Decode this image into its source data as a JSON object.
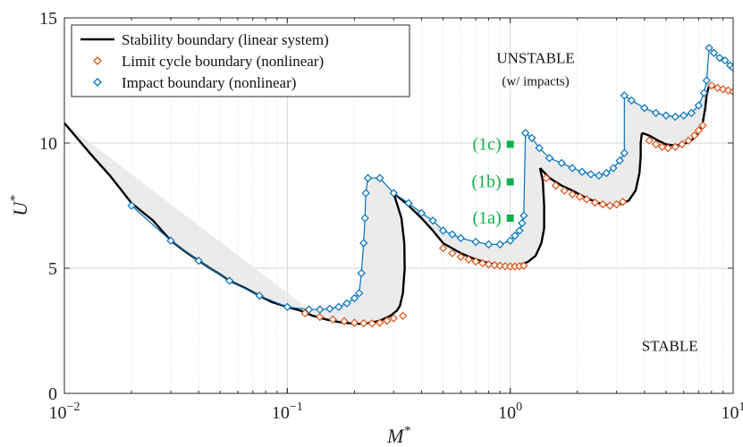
{
  "chart_data": {
    "type": "line",
    "xscale": "log",
    "xlim": [
      0.01,
      10
    ],
    "ylim": [
      0,
      15
    ],
    "grid": true,
    "legend_position": "top-left",
    "xlabel_main": "M",
    "xlabel_sup": "*",
    "ylabel_main": "U",
    "ylabel_sup": "*",
    "x_ticks": [
      {
        "value": 0.01,
        "base": "10",
        "exp": "−2"
      },
      {
        "value": 0.1,
        "base": "10",
        "exp": "−1"
      },
      {
        "value": 1,
        "base": "10",
        "exp": "0"
      },
      {
        "value": 10,
        "base": "10",
        "exp": "1"
      }
    ],
    "y_ticks": [
      {
        "value": 0,
        "label": "0"
      },
      {
        "value": 5,
        "label": "5"
      },
      {
        "value": 10,
        "label": "10"
      },
      {
        "value": 15,
        "label": "15"
      }
    ],
    "colors": {
      "stability": "#000000",
      "limit_cycle": "#d95319",
      "impact": "#0072bd",
      "shade": "#e8e8e8",
      "markers": "#10b04a"
    },
    "region_labels": [
      {
        "text": "UNSTABLE",
        "x": 1.3,
        "y": 13.2,
        "size": 17
      },
      {
        "text": "(w/ impacts)",
        "x": 1.3,
        "y": 12.3,
        "size": 15
      },
      {
        "text": "STABLE",
        "x": 5.2,
        "y": 1.7,
        "size": 17
      }
    ],
    "point_labels": [
      {
        "text": "(1a)",
        "x": 1.0,
        "y": 7.0
      },
      {
        "text": "(1b)",
        "x": 1.0,
        "y": 8.45
      },
      {
        "text": "(1c)",
        "x": 1.0,
        "y": 9.95
      }
    ],
    "series": [
      {
        "name": "Stability boundary (linear system)",
        "style": "line",
        "segments": [
          [
            [
              0.01,
              10.8
            ],
            [
              0.013,
              9.6
            ],
            [
              0.016,
              8.7
            ],
            [
              0.02,
              7.6
            ],
            [
              0.025,
              6.9
            ],
            [
              0.03,
              6.1
            ],
            [
              0.035,
              5.65
            ],
            [
              0.04,
              5.3
            ],
            [
              0.045,
              5.0
            ],
            [
              0.05,
              4.75
            ],
            [
              0.055,
              4.5
            ],
            [
              0.065,
              4.2
            ],
            [
              0.075,
              3.9
            ],
            [
              0.085,
              3.65
            ],
            [
              0.1,
              3.45
            ],
            [
              0.115,
              3.3
            ],
            [
              0.13,
              3.1
            ],
            [
              0.15,
              2.95
            ],
            [
              0.17,
              2.85
            ],
            [
              0.19,
              2.8
            ],
            [
              0.21,
              2.78
            ],
            [
              0.23,
              2.8
            ],
            [
              0.26,
              2.9
            ],
            [
              0.29,
              3.1
            ],
            [
              0.31,
              3.3
            ],
            [
              0.32,
              3.5
            ],
            [
              0.33,
              4.0
            ],
            [
              0.336,
              5.0
            ],
            [
              0.335,
              6.0
            ],
            [
              0.325,
              7.0
            ],
            [
              0.3,
              8.0
            ]
          ],
          [
            [
              0.3,
              8.0
            ],
            [
              0.35,
              7.5
            ],
            [
              0.4,
              7.0
            ],
            [
              0.45,
              6.5
            ],
            [
              0.5,
              6.0
            ],
            [
              0.6,
              5.6
            ],
            [
              0.7,
              5.35
            ],
            [
              0.8,
              5.2
            ],
            [
              0.9,
              5.12
            ],
            [
              1.0,
              5.1
            ],
            [
              1.1,
              5.12
            ],
            [
              1.2,
              5.25
            ],
            [
              1.3,
              5.5
            ],
            [
              1.38,
              6.0
            ],
            [
              1.42,
              6.6
            ],
            [
              1.42,
              7.5
            ],
            [
              1.4,
              8.5
            ],
            [
              1.36,
              9.0
            ]
          ],
          [
            [
              1.36,
              9.0
            ],
            [
              1.5,
              8.6
            ],
            [
              1.7,
              8.3
            ],
            [
              1.9,
              8.1
            ],
            [
              2.2,
              7.8
            ],
            [
              2.5,
              7.6
            ],
            [
              2.8,
              7.5
            ],
            [
              3.1,
              7.55
            ],
            [
              3.4,
              7.7
            ],
            [
              3.65,
              8.1
            ],
            [
              3.8,
              8.8
            ],
            [
              3.85,
              9.5
            ],
            [
              3.85,
              10.0
            ],
            [
              3.9,
              10.4
            ]
          ],
          [
            [
              3.9,
              10.4
            ],
            [
              4.2,
              10.3
            ],
            [
              4.6,
              10.1
            ],
            [
              5.0,
              9.95
            ],
            [
              5.5,
              9.9
            ],
            [
              6.0,
              9.95
            ],
            [
              6.5,
              10.1
            ],
            [
              7.0,
              10.4
            ],
            [
              7.3,
              10.8
            ],
            [
              7.5,
              11.4
            ],
            [
              7.6,
              11.9
            ],
            [
              7.8,
              12.3
            ]
          ],
          [
            [
              7.8,
              12.3
            ],
            [
              8.5,
              12.2
            ],
            [
              9.5,
              12.1
            ],
            [
              10.0,
              12.1
            ]
          ]
        ]
      },
      {
        "name": "Limit cycle boundary (nonlinear)",
        "style": "markers",
        "points": [
          [
            0.12,
            3.2
          ],
          [
            0.14,
            3.05
          ],
          [
            0.16,
            2.95
          ],
          [
            0.18,
            2.88
          ],
          [
            0.2,
            2.82
          ],
          [
            0.22,
            2.8
          ],
          [
            0.24,
            2.79
          ],
          [
            0.26,
            2.82
          ],
          [
            0.28,
            2.9
          ],
          [
            0.3,
            3.0
          ],
          [
            0.33,
            3.1
          ],
          [
            0.5,
            5.8
          ],
          [
            0.55,
            5.6
          ],
          [
            0.6,
            5.45
          ],
          [
            0.65,
            5.35
          ],
          [
            0.7,
            5.27
          ],
          [
            0.75,
            5.2
          ],
          [
            0.8,
            5.15
          ],
          [
            0.85,
            5.12
          ],
          [
            0.9,
            5.1
          ],
          [
            0.95,
            5.08
          ],
          [
            1.0,
            5.07
          ],
          [
            1.05,
            5.07
          ],
          [
            1.1,
            5.08
          ],
          [
            1.15,
            5.1
          ],
          [
            1.45,
            8.6
          ],
          [
            1.6,
            8.3
          ],
          [
            1.75,
            8.1
          ],
          [
            1.9,
            7.95
          ],
          [
            2.05,
            7.85
          ],
          [
            2.2,
            7.75
          ],
          [
            2.4,
            7.62
          ],
          [
            2.6,
            7.55
          ],
          [
            2.8,
            7.5
          ],
          [
            3.0,
            7.55
          ],
          [
            3.2,
            7.65
          ],
          [
            4.2,
            10.1
          ],
          [
            4.5,
            9.95
          ],
          [
            4.8,
            9.85
          ],
          [
            5.1,
            9.8
          ],
          [
            5.5,
            9.85
          ],
          [
            5.9,
            9.95
          ],
          [
            6.3,
            10.1
          ],
          [
            6.7,
            10.3
          ],
          [
            7.0,
            10.5
          ],
          [
            7.3,
            10.7
          ],
          [
            8.0,
            12.3
          ],
          [
            8.5,
            12.2
          ],
          [
            9.0,
            12.15
          ],
          [
            9.5,
            12.1
          ],
          [
            10.0,
            12.05
          ]
        ]
      },
      {
        "name": "Impact boundary (nonlinear)",
        "style": "line-markers",
        "points": [
          [
            0.02,
            7.5
          ],
          [
            0.03,
            6.1
          ],
          [
            0.04,
            5.3
          ],
          [
            0.055,
            4.5
          ],
          [
            0.075,
            3.9
          ],
          [
            0.1,
            3.45
          ],
          [
            0.125,
            3.35
          ],
          [
            0.14,
            3.35
          ],
          [
            0.155,
            3.38
          ],
          [
            0.17,
            3.45
          ],
          [
            0.185,
            3.6
          ],
          [
            0.2,
            3.8
          ],
          [
            0.21,
            4.0
          ],
          [
            0.215,
            4.8
          ],
          [
            0.22,
            6.0
          ],
          [
            0.223,
            7.0
          ],
          [
            0.225,
            8.0
          ],
          [
            0.23,
            8.6
          ],
          [
            0.26,
            8.6
          ],
          [
            0.3,
            8.0
          ],
          [
            0.35,
            7.6
          ],
          [
            0.4,
            7.2
          ],
          [
            0.45,
            6.9
          ],
          [
            0.5,
            6.5
          ],
          [
            0.55,
            6.35
          ],
          [
            0.6,
            6.2
          ],
          [
            0.7,
            6.05
          ],
          [
            0.8,
            5.95
          ],
          [
            0.9,
            5.95
          ],
          [
            1.0,
            6.1
          ],
          [
            1.05,
            6.3
          ],
          [
            1.1,
            6.5
          ],
          [
            1.13,
            6.8
          ],
          [
            1.15,
            7.1
          ],
          [
            1.17,
            10.4
          ],
          [
            1.25,
            10.2
          ],
          [
            1.35,
            9.8
          ],
          [
            1.5,
            9.4
          ],
          [
            1.7,
            9.2
          ],
          [
            1.9,
            9.0
          ],
          [
            2.1,
            8.85
          ],
          [
            2.3,
            8.75
          ],
          [
            2.5,
            8.7
          ],
          [
            2.7,
            8.8
          ],
          [
            2.9,
            9.0
          ],
          [
            3.1,
            9.3
          ],
          [
            3.25,
            9.6
          ],
          [
            3.25,
            11.9
          ],
          [
            3.5,
            11.7
          ],
          [
            4.0,
            11.4
          ],
          [
            4.5,
            11.2
          ],
          [
            5.0,
            11.1
          ],
          [
            5.5,
            11.05
          ],
          [
            6.0,
            11.1
          ],
          [
            6.5,
            11.2
          ],
          [
            7.0,
            11.5
          ],
          [
            7.4,
            12.0
          ],
          [
            7.6,
            12.5
          ],
          [
            7.8,
            13.8
          ],
          [
            8.2,
            13.6
          ],
          [
            8.7,
            13.4
          ],
          [
            9.2,
            13.3
          ],
          [
            9.7,
            13.1
          ],
          [
            10.0,
            13.0
          ]
        ]
      }
    ]
  }
}
